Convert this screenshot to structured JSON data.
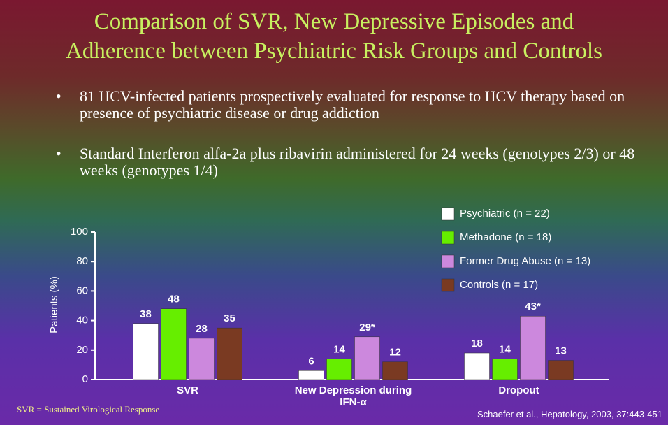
{
  "title": [
    "Comparison of SVR, New Depressive Episodes and",
    "Adherence between Psychiatric Risk Groups and Controls"
  ],
  "bullets": [
    "81 HCV-infected patients prospectively evaluated for response to HCV therapy based on presence of psychiatric disease or drug addiction",
    "Standard Interferon alfa-2a plus ribavirin administered for 24 weeks (genotypes 2/3) or 48 weeks (genotypes 1/4)"
  ],
  "footnote": "SVR = Sustained Virological Response",
  "source": "Schaefer et al., Hepatology, 2003, 37:443-451",
  "chart_data": {
    "type": "bar",
    "y_label": "Patients (%)",
    "categories": [
      "SVR",
      "New Depression during IFN-α",
      "Dropout"
    ],
    "series": [
      {
        "name": "Psychiatric (n = 22)",
        "color": "#ffffff",
        "values": [
          38,
          6,
          18
        ]
      },
      {
        "name": "Methadone (n = 18)",
        "color": "#66ee00",
        "values": [
          48,
          14,
          14
        ]
      },
      {
        "name": "Former Drug Abuse (n = 13)",
        "color": "#cc88dd",
        "values": [
          28,
          29,
          43
        ],
        "value_labels": [
          "28",
          "29*",
          "43*"
        ]
      },
      {
        "name": "Controls (n = 17)",
        "color": "#7a3a22",
        "values": [
          35,
          12,
          13
        ]
      }
    ],
    "ylim": [
      0,
      100
    ],
    "yticks": [
      0,
      20,
      40,
      60,
      80,
      100
    ]
  }
}
